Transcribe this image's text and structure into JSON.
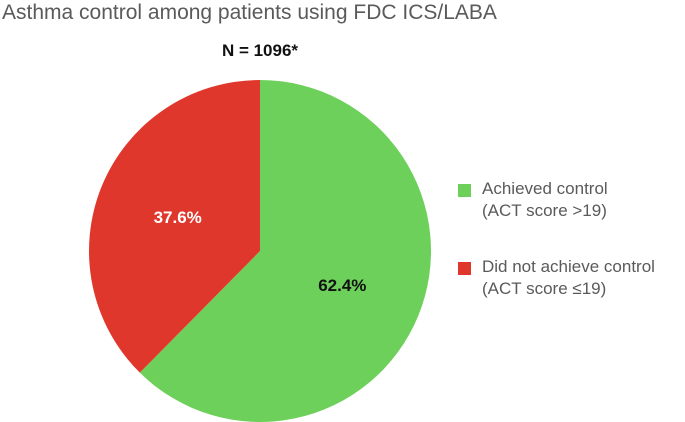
{
  "chart_data": {
    "type": "pie",
    "title": "Asthma control among patients using FDC ICS/LABA",
    "subtitle": "N = 1096*",
    "slices": [
      {
        "label_lines": [
          "Achieved control",
          "(ACT score >19)"
        ],
        "value": 62.4,
        "display": "62.4%",
        "color": "#6dd05a",
        "text_color": "#111111"
      },
      {
        "label_lines": [
          "Did not achieve control",
          "(ACT score ≤19)"
        ],
        "value": 37.6,
        "display": "37.6%",
        "color": "#e0372c",
        "text_color": "#ffffff"
      }
    ],
    "start_position": "12 o'clock",
    "direction": "clockwise",
    "legend_position": "right"
  }
}
